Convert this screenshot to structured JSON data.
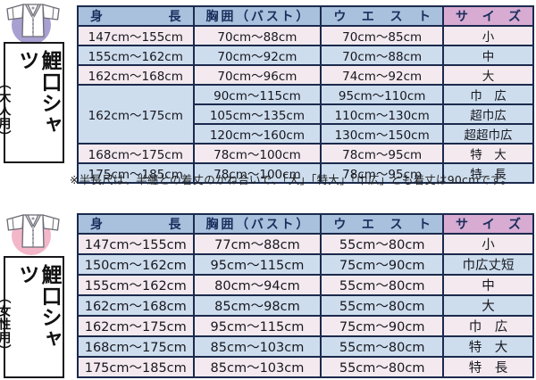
{
  "colors": {
    "header_blue": "#a9c1dd",
    "header_pink": "#d7abd2",
    "row_pink": "#f3e9ee",
    "row_blue": "#cddded",
    "table_border": "#1b2a4d",
    "circle_adult": "#a7a0d0",
    "circle_women": "#f3b7c9"
  },
  "sections": {
    "adult": {
      "label_main": "鯉口シャツ",
      "label_sub": "（大人用）",
      "icon": "shirt-icon",
      "table": {
        "headers": [
          "身長",
          "胸囲（バスト）",
          "ウエスト",
          "サイズ"
        ],
        "rows": [
          {
            "tone": "pink",
            "cells": [
              {
                "t": "147cm〜155cm",
                "n": "height-range-cell"
              },
              {
                "t": "70cm〜88cm",
                "n": "bust-range-cell"
              },
              {
                "t": "70cm〜85cm",
                "n": "waist-range-cell"
              },
              {
                "t": "小",
                "n": "size-label-cell"
              }
            ]
          },
          {
            "tone": "blue",
            "cells": [
              {
                "t": "155cm〜162cm",
                "n": "height-range-cell"
              },
              {
                "t": "70cm〜92cm",
                "n": "bust-range-cell"
              },
              {
                "t": "70cm〜88cm",
                "n": "waist-range-cell"
              },
              {
                "t": "中",
                "n": "size-label-cell"
              }
            ]
          },
          {
            "tone": "pink",
            "cells": [
              {
                "t": "162cm〜168cm",
                "n": "height-range-cell"
              },
              {
                "t": "70cm〜96cm",
                "n": "bust-range-cell"
              },
              {
                "t": "74cm〜92cm",
                "n": "waist-range-cell"
              },
              {
                "t": "大",
                "n": "size-label-cell"
              }
            ]
          },
          {
            "tone": "blue",
            "cells": [
              {
                "t": "162cm〜175cm",
                "n": "height-range-cell",
                "s": 3
              },
              {
                "t": "90cm〜115cm",
                "n": "bust-range-cell"
              },
              {
                "t": "95cm〜110cm",
                "n": "waist-range-cell"
              },
              {
                "t": "巾　広",
                "n": "size-label-cell"
              }
            ]
          },
          {
            "tone": "blue",
            "cells": [
              {
                "t": "105cm〜135cm",
                "n": "bust-range-cell"
              },
              {
                "t": "110cm〜130cm",
                "n": "waist-range-cell"
              },
              {
                "t": "超巾広",
                "n": "size-label-cell"
              }
            ]
          },
          {
            "tone": "blue",
            "cells": [
              {
                "t": "120cm〜160cm",
                "n": "bust-range-cell"
              },
              {
                "t": "130cm〜150cm",
                "n": "waist-range-cell"
              },
              {
                "t": "超超巾広",
                "n": "size-label-cell"
              }
            ]
          },
          {
            "tone": "pink",
            "cells": [
              {
                "t": "168cm〜175cm",
                "n": "height-range-cell"
              },
              {
                "t": "78cm〜100cm",
                "n": "bust-range-cell"
              },
              {
                "t": "78cm〜95cm",
                "n": "waist-range-cell"
              },
              {
                "t": "特　大",
                "n": "size-label-cell"
              }
            ]
          },
          {
            "tone": "blue",
            "cells": [
              {
                "t": "175cm〜185cm",
                "n": "height-range-cell"
              },
              {
                "t": "78cm〜100cm",
                "n": "bust-range-cell"
              },
              {
                "t": "78cm〜95cm",
                "n": "waist-range-cell"
              },
              {
                "t": "特　長",
                "n": "size-label-cell"
              }
            ]
          }
        ]
      },
      "note": "※半長尺は、半纏との着丈のかね合いで、「大」「特大」「巾広」とも着丈は90cmです。"
    },
    "women": {
      "label_main": "鯉口シャツ",
      "label_sub": "（女性用）",
      "icon": "shirt-icon",
      "table": {
        "headers": [
          "身長",
          "胸囲（バスト）",
          "ウエスト",
          "サイズ"
        ],
        "rows": [
          {
            "tone": "pink",
            "cells": [
              {
                "t": "147cm〜155cm",
                "n": "height-range-cell"
              },
              {
                "t": "77cm〜88cm",
                "n": "bust-range-cell"
              },
              {
                "t": "55cm〜80cm",
                "n": "waist-range-cell"
              },
              {
                "t": "小",
                "n": "size-label-cell"
              }
            ]
          },
          {
            "tone": "blue",
            "cells": [
              {
                "t": "150cm〜162cm",
                "n": "height-range-cell"
              },
              {
                "t": "95cm〜115cm",
                "n": "bust-range-cell"
              },
              {
                "t": "75cm〜90cm",
                "n": "waist-range-cell"
              },
              {
                "t": "巾広丈短",
                "n": "size-label-cell"
              }
            ]
          },
          {
            "tone": "pink",
            "cells": [
              {
                "t": "155cm〜162cm",
                "n": "height-range-cell"
              },
              {
                "t": "80cm〜94cm",
                "n": "bust-range-cell"
              },
              {
                "t": "55cm〜80cm",
                "n": "waist-range-cell"
              },
              {
                "t": "中",
                "n": "size-label-cell"
              }
            ]
          },
          {
            "tone": "blue",
            "cells": [
              {
                "t": "162cm〜168cm",
                "n": "height-range-cell"
              },
              {
                "t": "85cm〜98cm",
                "n": "bust-range-cell"
              },
              {
                "t": "55cm〜80cm",
                "n": "waist-range-cell"
              },
              {
                "t": "大",
                "n": "size-label-cell"
              }
            ]
          },
          {
            "tone": "pink",
            "cells": [
              {
                "t": "162cm〜175cm",
                "n": "height-range-cell"
              },
              {
                "t": "95cm〜115cm",
                "n": "bust-range-cell"
              },
              {
                "t": "75cm〜90cm",
                "n": "waist-range-cell"
              },
              {
                "t": "巾　広",
                "n": "size-label-cell"
              }
            ]
          },
          {
            "tone": "blue",
            "cells": [
              {
                "t": "168cm〜175cm",
                "n": "height-range-cell"
              },
              {
                "t": "85cm〜103cm",
                "n": "bust-range-cell"
              },
              {
                "t": "55cm〜80cm",
                "n": "waist-range-cell"
              },
              {
                "t": "特　大",
                "n": "size-label-cell"
              }
            ]
          },
          {
            "tone": "pink",
            "cells": [
              {
                "t": "175cm〜185cm",
                "n": "height-range-cell"
              },
              {
                "t": "85cm〜103cm",
                "n": "bust-range-cell"
              },
              {
                "t": "55cm〜80cm",
                "n": "waist-range-cell"
              },
              {
                "t": "特　長",
                "n": "size-label-cell"
              }
            ]
          }
        ]
      }
    }
  }
}
